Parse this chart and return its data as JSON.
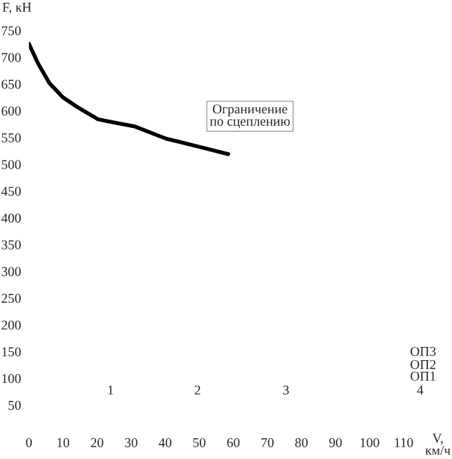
{
  "chart_data": {
    "type": "line",
    "xlabel": "V,\nкм/ч",
    "ylabel": "F, кН",
    "series": [
      {
        "color": "#000000",
        "x": [
          0,
          2.8,
          6.1,
          10,
          14.2,
          20.3,
          25,
          30.9,
          40.2,
          50.4,
          58.5
        ],
        "values": [
          725,
          687,
          651,
          625,
          607,
          584,
          578,
          571,
          548,
          532,
          519
        ]
      }
    ],
    "xlim": [
      0,
      110
    ],
    "ylim": [
      50,
      750
    ],
    "xticks": [
      0,
      10,
      20,
      30,
      40,
      50,
      60,
      70,
      80,
      90,
      100,
      110
    ],
    "yticks": [
      50,
      100,
      150,
      200,
      250,
      300,
      350,
      400,
      450,
      500,
      550,
      600,
      650,
      700,
      750
    ],
    "annotations": [
      "Ограничение\nпо сцеплению",
      "1",
      "2",
      "3",
      "4",
      "ОП1",
      "ОП2",
      "ОП3"
    ],
    "grid": false,
    "legend": false
  }
}
